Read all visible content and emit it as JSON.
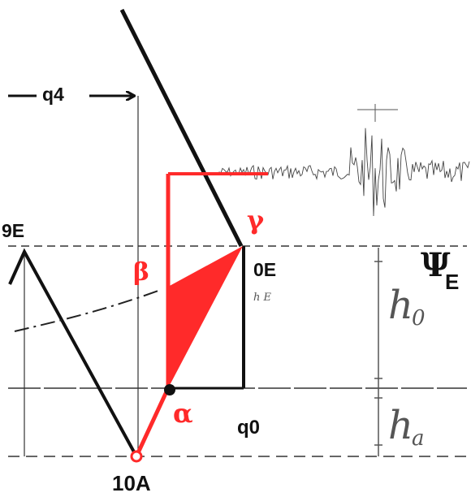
{
  "labels": {
    "q4": "q4",
    "nine_e": "9E",
    "zero_e": "0E",
    "q0": "q0",
    "ten_a": "10A",
    "alpha": "α",
    "beta": "β",
    "gamma": "γ",
    "psi": "Ψ",
    "psi_sub": "E",
    "h0": "h",
    "h0_sub": "0",
    "ha": "h",
    "ha_sub": "a",
    "faint_mark": "h E"
  },
  "colors": {
    "accent": "#ff2a2a",
    "ink": "#111111",
    "pencil": "#555555",
    "dashed": "#666666"
  }
}
